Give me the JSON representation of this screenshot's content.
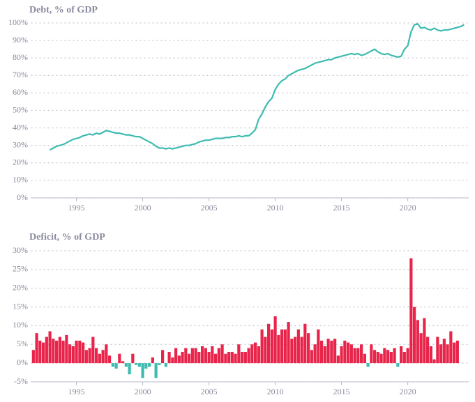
{
  "chart_data": [
    {
      "type": "line",
      "title": "Debt, % of GDP",
      "color": "#3dbbb0",
      "grid": true,
      "xlim": [
        1991.6,
        2024.6
      ],
      "ylim": [
        0,
        100
      ],
      "xticks": [
        1995,
        2000,
        2005,
        2010,
        2015,
        2020
      ],
      "yticks": [
        {
          "value": 0,
          "label": "0%"
        },
        {
          "value": 10,
          "label": "10%"
        },
        {
          "value": 20,
          "label": "20%"
        },
        {
          "value": 30,
          "label": "30%"
        },
        {
          "value": 40,
          "label": "40%"
        },
        {
          "value": 50,
          "label": "50%"
        },
        {
          "value": 60,
          "label": "60%"
        },
        {
          "value": 70,
          "label": "70%"
        },
        {
          "value": 80,
          "label": "80%"
        },
        {
          "value": 90,
          "label": "90%"
        },
        {
          "value": 100,
          "label": "100%"
        }
      ],
      "x": [
        1993,
        1993.25,
        1993.5,
        1993.75,
        1994,
        1994.25,
        1994.5,
        1994.75,
        1995,
        1995.25,
        1995.5,
        1995.75,
        1996,
        1996.25,
        1996.5,
        1996.75,
        1997,
        1997.25,
        1997.5,
        1997.75,
        1998,
        1998.25,
        1998.5,
        1998.75,
        1999,
        1999.25,
        1999.5,
        1999.75,
        2000,
        2000.25,
        2000.5,
        2000.75,
        2001,
        2001.25,
        2001.5,
        2001.75,
        2002,
        2002.25,
        2002.5,
        2002.75,
        2003,
        2003.25,
        2003.5,
        2003.75,
        2004,
        2004.25,
        2004.5,
        2004.75,
        2005,
        2005.25,
        2005.5,
        2005.75,
        2006,
        2006.25,
        2006.5,
        2006.75,
        2007,
        2007.25,
        2007.5,
        2007.75,
        2008,
        2008.25,
        2008.5,
        2008.75,
        2009,
        2009.25,
        2009.5,
        2009.75,
        2010,
        2010.25,
        2010.5,
        2010.75,
        2011,
        2011.25,
        2011.5,
        2011.75,
        2012,
        2012.25,
        2012.5,
        2012.75,
        2013,
        2013.25,
        2013.5,
        2013.75,
        2014,
        2014.25,
        2014.5,
        2014.75,
        2015,
        2015.25,
        2015.5,
        2015.75,
        2016,
        2016.25,
        2016.5,
        2016.75,
        2017,
        2017.25,
        2017.5,
        2017.75,
        2018,
        2018.25,
        2018.5,
        2018.75,
        2019,
        2019.25,
        2019.5,
        2019.75,
        2020,
        2020.25,
        2020.5,
        2020.75,
        2021,
        2021.25,
        2021.5,
        2021.75,
        2022,
        2022.25,
        2022.5,
        2022.75,
        2023,
        2023.25,
        2023.5,
        2023.75,
        2024,
        2024.25
      ],
      "values": [
        27.5,
        28.5,
        29.5,
        30,
        30.5,
        31.5,
        32.5,
        33.5,
        34,
        34.5,
        35.5,
        36,
        36.5,
        36,
        37,
        36.5,
        37.5,
        38.5,
        38,
        37.5,
        37,
        37,
        36.5,
        36,
        36,
        35.5,
        35,
        35,
        34,
        33,
        32,
        31,
        29.5,
        28.5,
        28.5,
        28,
        28.5,
        28,
        28.5,
        29,
        29.5,
        30,
        30,
        30.5,
        31,
        32,
        32.5,
        33,
        33,
        33.5,
        34,
        34,
        34,
        34.5,
        34.5,
        35,
        35,
        35.5,
        35,
        35.5,
        35.5,
        37,
        39,
        45,
        48,
        52,
        55,
        57,
        62,
        65,
        67,
        68,
        70,
        71,
        72,
        73,
        73.5,
        74,
        75,
        76,
        77,
        77.5,
        78,
        78.5,
        79,
        79,
        80,
        80.5,
        81,
        81.5,
        82,
        82.5,
        82,
        82.5,
        81.5,
        82,
        83,
        84,
        85,
        83.5,
        82.5,
        82,
        82.5,
        81.5,
        81,
        80.5,
        81,
        85,
        87,
        95,
        99,
        99.5,
        97,
        97.5,
        96.5,
        96,
        97,
        96,
        95.5,
        96,
        96,
        96.5,
        97,
        97.5,
        98,
        99
      ]
    },
    {
      "type": "bar",
      "title": "Deficit, % of GDP",
      "color": "#e8244a",
      "negative_color": "#3dbbb0",
      "grid": true,
      "xlim": [
        1991.6,
        2024.6
      ],
      "ylim": [
        -5,
        30
      ],
      "xticks": [
        1995,
        2000,
        2005,
        2010,
        2015,
        2020
      ],
      "yticks": [
        {
          "value": -5,
          "label": "-5%"
        },
        {
          "value": 0,
          "label": "0%"
        },
        {
          "value": 5,
          "label": "5%"
        },
        {
          "value": 10,
          "label": "10%"
        },
        {
          "value": 15,
          "label": "15%"
        },
        {
          "value": 20,
          "label": "20%"
        },
        {
          "value": 25,
          "label": "25%"
        },
        {
          "value": 30,
          "label": "30%"
        }
      ],
      "x": [
        1991.75,
        1992,
        1992.25,
        1992.5,
        1992.75,
        1993,
        1993.25,
        1993.5,
        1993.75,
        1994,
        1994.25,
        1994.5,
        1994.75,
        1995,
        1995.25,
        1995.5,
        1995.75,
        1996,
        1996.25,
        1996.5,
        1996.75,
        1997,
        1997.25,
        1997.5,
        1997.75,
        1998,
        1998.25,
        1998.5,
        1998.75,
        1999,
        1999.25,
        1999.5,
        1999.75,
        2000,
        2000.25,
        2000.5,
        2000.75,
        2001,
        2001.25,
        2001.5,
        2001.75,
        2002,
        2002.25,
        2002.5,
        2002.75,
        2003,
        2003.25,
        2003.5,
        2003.75,
        2004,
        2004.25,
        2004.5,
        2004.75,
        2005,
        2005.25,
        2005.5,
        2005.75,
        2006,
        2006.25,
        2006.5,
        2006.75,
        2007,
        2007.25,
        2007.5,
        2007.75,
        2008,
        2008.25,
        2008.5,
        2008.75,
        2009,
        2009.25,
        2009.5,
        2009.75,
        2010,
        2010.25,
        2010.5,
        2010.75,
        2011,
        2011.25,
        2011.5,
        2011.75,
        2012,
        2012.25,
        2012.5,
        2012.75,
        2013,
        2013.25,
        2013.5,
        2013.75,
        2014,
        2014.25,
        2014.5,
        2014.75,
        2015,
        2015.25,
        2015.5,
        2015.75,
        2016,
        2016.25,
        2016.5,
        2016.75,
        2017,
        2017.25,
        2017.5,
        2017.75,
        2018,
        2018.25,
        2018.5,
        2018.75,
        2019,
        2019.25,
        2019.5,
        2019.75,
        2020,
        2020.25,
        2020.5,
        2020.75,
        2021,
        2021.25,
        2021.5,
        2021.75,
        2022,
        2022.25,
        2022.5,
        2022.75,
        2023,
        2023.25,
        2023.5,
        2023.75
      ],
      "values": [
        3.5,
        8,
        6,
        5.5,
        7,
        8.5,
        6.5,
        6,
        7,
        6,
        7.5,
        5,
        4.5,
        6,
        6,
        5.5,
        3.5,
        4,
        7,
        4,
        2.5,
        3.5,
        5,
        2,
        -1,
        -1.5,
        2.5,
        0.5,
        -1,
        -3,
        2.5,
        -0.5,
        -1,
        -4,
        -1.5,
        -1,
        1.5,
        -4,
        -0.5,
        3.5,
        -1,
        3,
        1.5,
        4,
        2,
        3,
        4,
        2.5,
        4,
        4,
        3,
        4.5,
        4,
        3,
        4.5,
        2.5,
        4,
        5,
        2.5,
        3,
        3,
        2.5,
        5,
        3,
        3,
        4,
        5,
        5.5,
        4.5,
        9,
        7,
        10.5,
        9,
        12.5,
        7.5,
        9,
        9,
        11,
        6.5,
        7,
        9,
        7,
        10.5,
        8,
        3.5,
        5,
        9,
        6,
        4.5,
        6.5,
        6,
        6.5,
        2,
        4.5,
        6,
        5.5,
        5,
        4,
        4,
        5,
        2.5,
        -1,
        5,
        3.5,
        3,
        2.5,
        4,
        3.5,
        3,
        4,
        -1,
        4.5,
        3,
        4,
        28,
        15,
        11.5,
        8,
        12,
        7,
        4.5,
        1,
        7,
        5,
        6.5,
        5,
        8.5,
        5.5,
        6
      ]
    }
  ]
}
